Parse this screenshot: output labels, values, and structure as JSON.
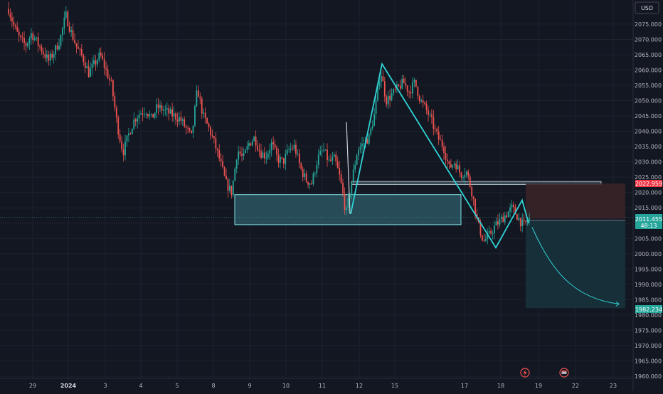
{
  "currency": "USD",
  "chart_data": {
    "type": "candlestick",
    "symbol": "",
    "price_axis": {
      "unit": "USD",
      "ylim": [
        1958.0,
        2085.0
      ],
      "ticks": [
        1960,
        1965,
        1970,
        1975,
        1980,
        1985,
        1990,
        1995,
        2000,
        2005,
        2010,
        2015,
        2020,
        2025,
        2030,
        2035,
        2040,
        2045,
        2050,
        2055,
        2060,
        2065,
        2070,
        2075
      ],
      "tick_labels": [
        "1960.000",
        "1965.000",
        "1970.000",
        "1975.000",
        "1980.000",
        "1985.000",
        "1990.000",
        "1995.000",
        "2000.000",
        "2005.000",
        "2010.000",
        "2015.000",
        "2020.000",
        "2025.000",
        "2030.000",
        "2035.000",
        "2040.000",
        "2045.000",
        "2050.000",
        "2055.000",
        "2060.000",
        "2065.000",
        "2070.000",
        "2075.000"
      ]
    },
    "time_axis": {
      "tick_labels": [
        "29",
        "2024",
        "3",
        "4",
        "5",
        "8",
        "9",
        "10",
        "11",
        "12",
        "15",
        "17",
        "18",
        "19",
        "22",
        "23"
      ]
    },
    "current_price": {
      "label": "2011.455",
      "countdown": "48:13",
      "value": 2011.455
    },
    "stop_loss": {
      "label": "2022.959",
      "value": 2022.959
    },
    "target": {
      "label": "1982.234",
      "value": 1982.234
    },
    "price_series": [
      2080.0,
      2074.0,
      2070.0,
      2068.0,
      2072.0,
      2069.0,
      2066.0,
      2063.0,
      2066.0,
      2070.0,
      2078.0,
      2072.0,
      2067.0,
      2064.0,
      2059.0,
      2062.0,
      2065.0,
      2060.0,
      2055.0,
      2042.0,
      2033.0,
      2039.0,
      2044.0,
      2046.0,
      2047.0,
      2044.0,
      2048.0,
      2047.0,
      2046.0,
      2045.0,
      2044.0,
      2041.0,
      2038.0,
      2054.0,
      2045.0,
      2041.0,
      2036.0,
      2030.0,
      2023.0,
      2020.0,
      2034.0,
      2031.0,
      2036.0,
      2038.0,
      2033.0,
      2032.0,
      2036.0,
      2031.0,
      2030.0,
      2034.0,
      2035.0,
      2028.0,
      2024.0,
      2023.0,
      2031.0,
      2034.0,
      2030.0,
      2031.0,
      2024.0,
      2013.0,
      2024.0,
      2034.0,
      2036.0,
      2038.0,
      2046.0,
      2060.0,
      2050.0,
      2052.0,
      2054.0,
      2056.0,
      2053.0,
      2056.0,
      2050.0,
      2047.0,
      2043.0,
      2038.0,
      2035.0,
      2028.0,
      2030.0,
      2026.0,
      2027.0,
      2020.0,
      2010.0,
      2004.0,
      2006.0,
      2009.0,
      2011.0,
      2013.0,
      2015.0,
      2012.0,
      2009.0,
      2011.455
    ],
    "zones": [
      {
        "name": "demand-zone",
        "from": 2009.5,
        "to": 2019.3
      },
      {
        "name": "resistance-line",
        "from": 2022.6,
        "to": 2023.6
      }
    ],
    "pattern_points": [
      {
        "label": "",
        "value": 2013.0
      },
      {
        "label": "",
        "value": 2062.0
      },
      {
        "label": "",
        "value": 2002.0
      },
      {
        "label": "",
        "value": 2017.5
      },
      {
        "label": "",
        "value": 2010.0
      }
    ],
    "colors": {
      "up": "#26a69a",
      "down": "#ef5350",
      "background": "#131722",
      "grid": "#1e222d",
      "axis_text": "#b2b5be",
      "pattern": "#31d3d6",
      "zone_fill": "#2c5560",
      "zone_border": "#7fe3e6",
      "stop_zone": "#3a2428",
      "target_zone": "#17303a",
      "price_label": "#26a69a",
      "stop_label": "#f23645"
    }
  }
}
